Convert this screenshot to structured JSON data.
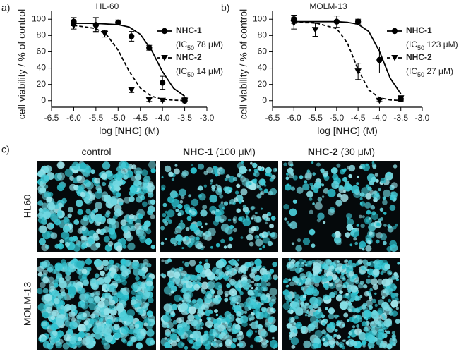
{
  "chart_data": [
    {
      "type": "line",
      "label": "a)",
      "title": "HL-60",
      "x_label": [
        "log [",
        "NHC",
        "] (M)"
      ],
      "y_label": "cell viability / % of control",
      "xlim": [
        -6.5,
        -3.0
      ],
      "ylim": [
        -8,
        108
      ],
      "xticks": [
        -6.5,
        {
          "value": -6,
          "label": "-6.0"
        },
        -5.5,
        {
          "value": -5,
          "label": "-5.0"
        },
        -4.5,
        {
          "value": -4,
          "label": "-4.0"
        },
        -3.5,
        {
          "value": -3,
          "label": "-3.0"
        }
      ],
      "yticks": [
        0,
        20,
        40,
        60,
        80,
        100
      ],
      "series": [
        {
          "name": "NHC-1",
          "note": [
            "(IC",
            "50",
            " 78 μM)"
          ],
          "color": "#000000",
          "marker": "circle",
          "dashed": false,
          "x": [
            -6.0,
            -5.5,
            -5.0,
            -4.7,
            -4.3,
            -4.0,
            -3.5
          ],
          "values": [
            97,
            93,
            96,
            79,
            65,
            22,
            0
          ],
          "errors": [
            5,
            9,
            3,
            6,
            3,
            8,
            4
          ],
          "fit_x": [
            -6.0,
            -5.5,
            -5.0,
            -4.75,
            -4.5,
            -4.25,
            -4.0,
            -3.75,
            -3.5
          ],
          "fit_values": [
            95,
            94.8,
            93.4,
            90.3,
            81.5,
            62.3,
            35.7,
            15.2,
            5.4
          ]
        },
        {
          "name": "NHC-2",
          "note": [
            "(IC",
            "50",
            " 14 μM)"
          ],
          "color": "#000000",
          "marker": "triangle",
          "dashed": true,
          "x": [
            -6.0,
            -5.5,
            -5.3,
            -4.7,
            -4.3,
            -4.0,
            -3.5
          ],
          "values": [
            92,
            90,
            82,
            13,
            1,
            0,
            0
          ],
          "errors": [
            4,
            5,
            4,
            3,
            2,
            1,
            1
          ],
          "fit_x": [
            -6.0,
            -5.5,
            -5.25,
            -5.0,
            -4.75,
            -4.5,
            -4.25,
            -4.0,
            -3.75,
            -3.5
          ],
          "fit_values": [
            92.5,
            88.6,
            80.3,
            62,
            36,
            15.5,
            5.5,
            1.8,
            0.6,
            0.2
          ]
        }
      ]
    },
    {
      "type": "line",
      "label": "b)",
      "title": "MOLM-13",
      "x_label": [
        "log [",
        "NHC",
        "] (M)"
      ],
      "y_label": "cell viability / % of control",
      "xlim": [
        -6.5,
        -3.0
      ],
      "ylim": [
        -8,
        108
      ],
      "xticks": [
        -6.5,
        {
          "value": -6,
          "label": "-6.0"
        },
        -5.5,
        {
          "value": -5,
          "label": "-5.0"
        },
        -4.5,
        {
          "value": -4,
          "label": "-4.0"
        },
        -3.5,
        {
          "value": -3,
          "label": "-3.0"
        }
      ],
      "yticks": [
        0,
        20,
        40,
        60,
        80,
        100
      ],
      "series": [
        {
          "name": "NHC-1",
          "note": [
            "(IC",
            "50",
            " 123 μM)"
          ],
          "color": "#000000",
          "marker": "circle",
          "dashed": false,
          "x": [
            -6.0,
            -5.0,
            -4.5,
            -4.0,
            -3.5
          ],
          "values": [
            100,
            97,
            97,
            50,
            2
          ],
          "errors": [
            5,
            7,
            3,
            16,
            3
          ],
          "fit_x": [
            -6.0,
            -5.5,
            -5.0,
            -4.75,
            -4.5,
            -4.25,
            -4.0,
            -3.75,
            -3.5
          ],
          "fit_values": [
            97,
            97,
            97,
            96.2,
            93.9,
            85,
            60.6,
            27.7,
            8.4
          ]
        },
        {
          "name": "NHC-2",
          "note": [
            "(IC",
            "50",
            " 27 μM)"
          ],
          "color": "#000000",
          "marker": "triangle",
          "dashed": true,
          "x": [
            -6.0,
            -5.5,
            -4.5,
            -4.0,
            -3.5
          ],
          "values": [
            95,
            87,
            36,
            0,
            3
          ],
          "errors": [
            7,
            8,
            10,
            1,
            3
          ],
          "fit_x": [
            -6.0,
            -5.5,
            -5.0,
            -4.75,
            -4.5,
            -4.25,
            -4.0,
            -3.75,
            -3.5
          ],
          "fit_values": [
            96,
            95.5,
            88.5,
            70.8,
            38.4,
            13.1,
            3.5,
            0.9,
            0.2
          ]
        }
      ]
    }
  ],
  "panel_c": {
    "label": "c)",
    "columns": [
      [
        "control"
      ],
      [
        "NHC-1",
        " (100 μM)"
      ],
      [
        "NHC-2",
        " (30 μM)"
      ]
    ],
    "rows": [
      "HL60",
      "MOLM-13"
    ]
  }
}
